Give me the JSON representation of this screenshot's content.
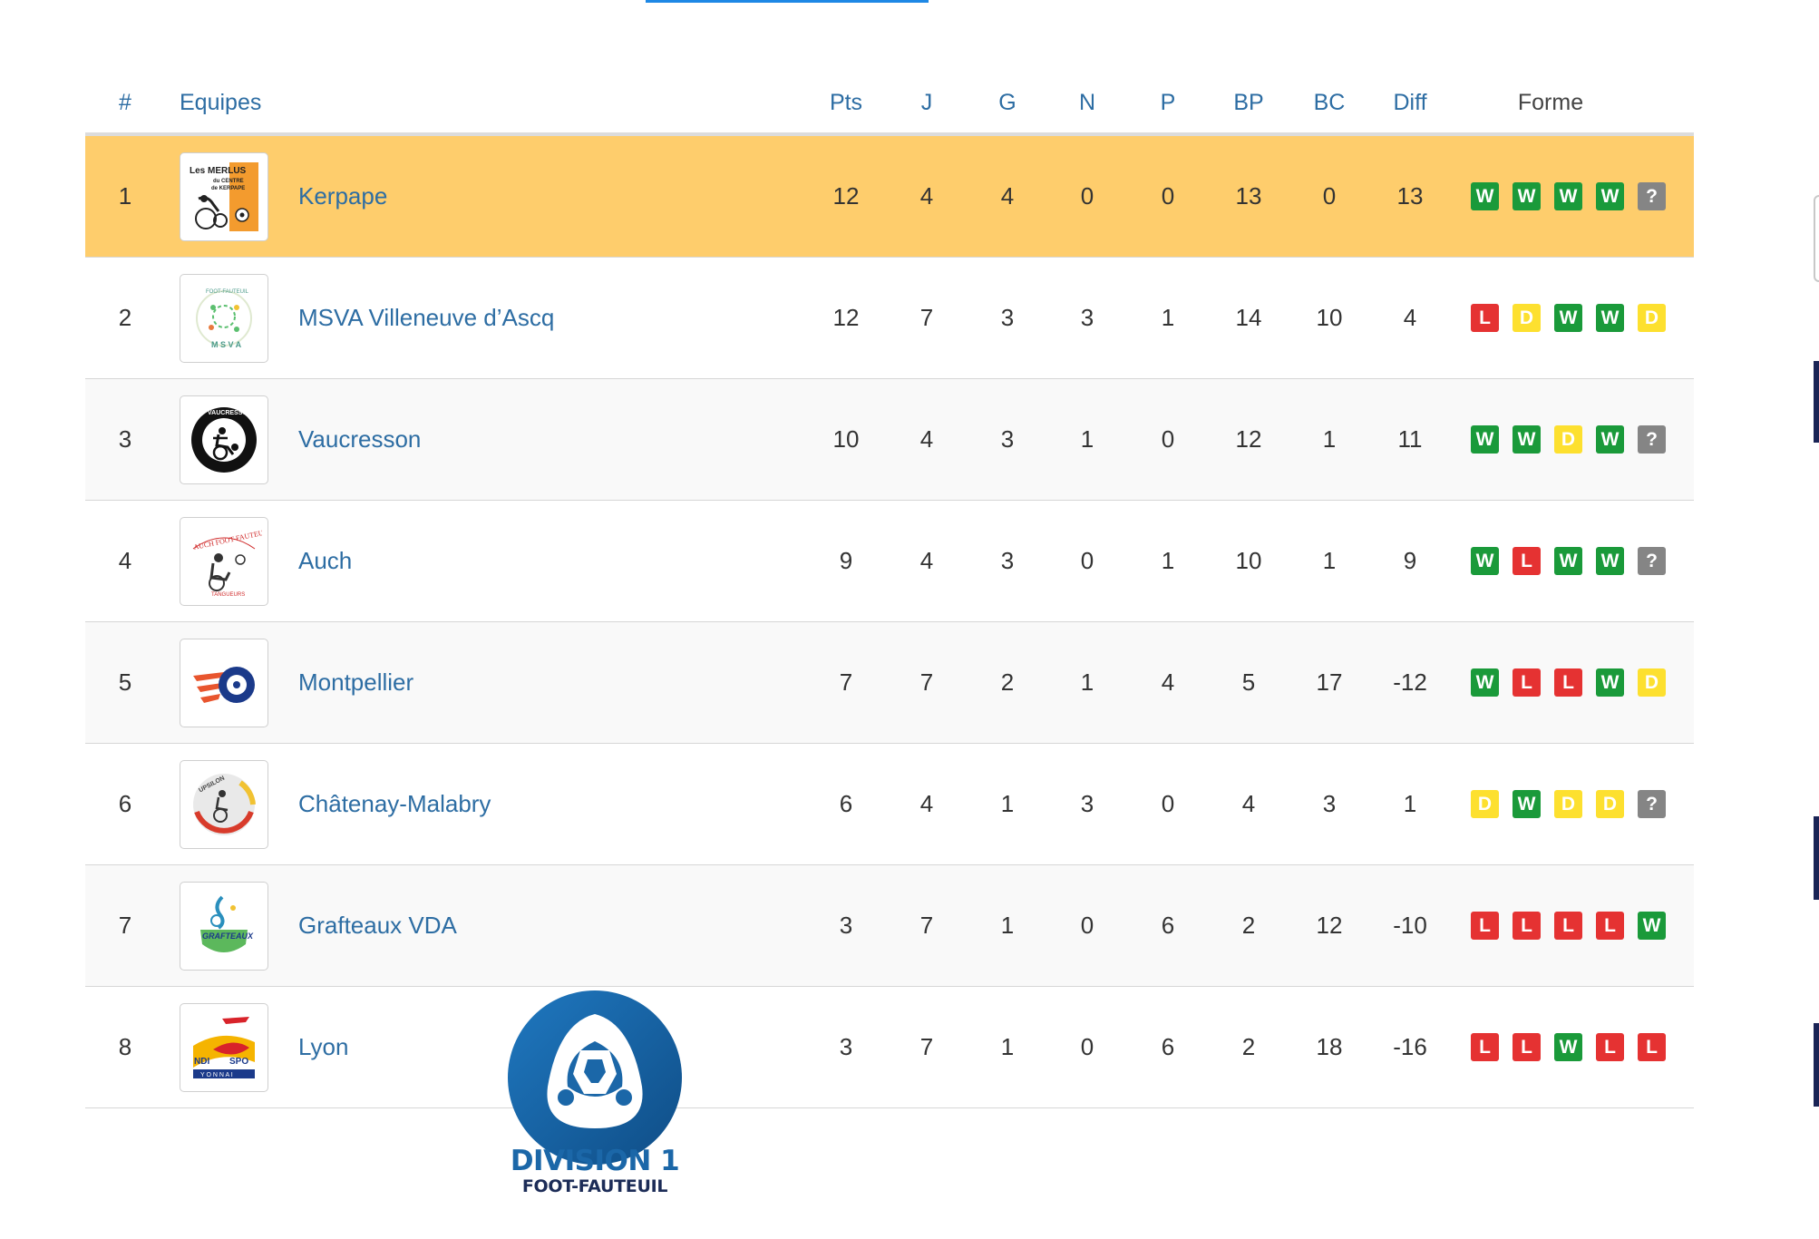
{
  "header": {
    "rank": "#",
    "team": "Equipes",
    "pts": "Pts",
    "j": "J",
    "g": "G",
    "n": "N",
    "p": "P",
    "bp": "BP",
    "bc": "BC",
    "diff": "Diff",
    "forme": "Forme"
  },
  "teams": [
    {
      "rank": "1",
      "name": "Kerpape",
      "logo_icon": "merlus-kerpape-logo",
      "logo_text": "Les MERLUS du CENTRE de KERPAPE",
      "pts": "12",
      "j": "4",
      "g": "4",
      "n": "0",
      "p": "0",
      "bp": "13",
      "bc": "0",
      "diff": "13",
      "form": [
        "W",
        "W",
        "W",
        "W",
        "?"
      ],
      "highlight": true
    },
    {
      "rank": "2",
      "name": "MSVA Villeneuve d’Ascq",
      "logo_icon": "msva-logo",
      "logo_text": "FOOT-FAUTEUIL MSVA",
      "pts": "12",
      "j": "7",
      "g": "3",
      "n": "3",
      "p": "1",
      "bp": "14",
      "bc": "10",
      "diff": "4",
      "form": [
        "L",
        "D",
        "W",
        "W",
        "D"
      ]
    },
    {
      "rank": "3",
      "name": "Vaucresson",
      "logo_icon": "vaucresson-logo",
      "logo_text": "VAUCRESSON",
      "pts": "10",
      "j": "4",
      "g": "3",
      "n": "1",
      "p": "0",
      "bp": "12",
      "bc": "1",
      "diff": "11",
      "form": [
        "W",
        "W",
        "D",
        "W",
        "?"
      ]
    },
    {
      "rank": "4",
      "name": "Auch",
      "logo_icon": "auch-logo",
      "logo_text": "AUCH FOOT-FAUTEUIL",
      "pts": "9",
      "j": "4",
      "g": "3",
      "n": "0",
      "p": "1",
      "bp": "10",
      "bc": "1",
      "diff": "9",
      "form": [
        "W",
        "L",
        "W",
        "W",
        "?"
      ]
    },
    {
      "rank": "5",
      "name": "Montpellier",
      "logo_icon": "montpellier-logo",
      "logo_text": "",
      "pts": "7",
      "j": "7",
      "g": "2",
      "n": "1",
      "p": "4",
      "bp": "5",
      "bc": "17",
      "diff": "-12",
      "form": [
        "W",
        "L",
        "L",
        "W",
        "D"
      ]
    },
    {
      "rank": "6",
      "name": "Châtenay-Malabry",
      "logo_icon": "upsilon-logo",
      "logo_text": "UPSILON",
      "pts": "6",
      "j": "4",
      "g": "1",
      "n": "3",
      "p": "0",
      "bp": "4",
      "bc": "3",
      "diff": "1",
      "form": [
        "D",
        "W",
        "D",
        "D",
        "?"
      ]
    },
    {
      "rank": "7",
      "name": "Grafteaux VDA",
      "logo_icon": "grafteaux-logo",
      "logo_text": "GRAFTEAUX",
      "pts": "3",
      "j": "7",
      "g": "1",
      "n": "0",
      "p": "6",
      "bp": "2",
      "bc": "12",
      "diff": "-10",
      "form": [
        "L",
        "L",
        "L",
        "L",
        "W"
      ]
    },
    {
      "rank": "8",
      "name": "Lyon",
      "logo_icon": "handisport-lyon-logo",
      "logo_text": "NDI SPO YONNAI",
      "pts": "3",
      "j": "7",
      "g": "1",
      "n": "0",
      "p": "6",
      "bp": "2",
      "bc": "18",
      "diff": "-16",
      "form": [
        "L",
        "L",
        "W",
        "L",
        "L"
      ]
    }
  ],
  "division": {
    "title": "DIVISION 1",
    "subtitle": "FOOT-FAUTEUIL"
  },
  "colors": {
    "win": "#1a9a3a",
    "loss": "#e53232",
    "draw": "#fde02f",
    "unknown": "#858585",
    "highlight_row": "#fecd6c",
    "link_blue": "#2d6da3",
    "division_blue": "#1b67a8"
  }
}
